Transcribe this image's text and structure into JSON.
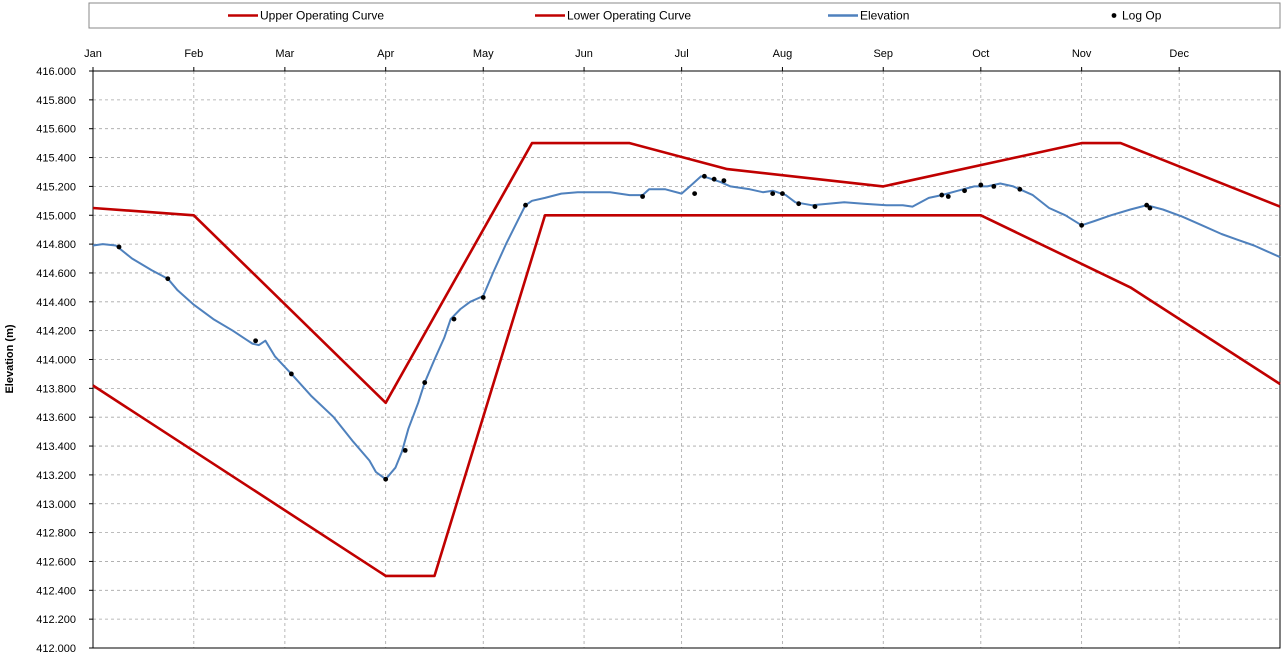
{
  "chart_data": {
    "type": "line",
    "ylabel": "Elevation (m)",
    "ylim": [
      412.0,
      416.0
    ],
    "y_ticks": [
      "412.000",
      "412.200",
      "412.400",
      "412.600",
      "412.800",
      "413.000",
      "413.200",
      "413.400",
      "413.600",
      "413.800",
      "414.000",
      "414.200",
      "414.400",
      "414.600",
      "414.800",
      "415.000",
      "415.200",
      "415.400",
      "415.600",
      "415.800",
      "416.000"
    ],
    "x_axis": {
      "unit": "day of year",
      "range": [
        1,
        366
      ],
      "position": "top"
    },
    "months": [
      {
        "label": "Jan",
        "day": 1
      },
      {
        "label": "Feb",
        "day": 32
      },
      {
        "label": "Mar",
        "day": 60
      },
      {
        "label": "Apr",
        "day": 91
      },
      {
        "label": "May",
        "day": 121
      },
      {
        "label": "Jun",
        "day": 152
      },
      {
        "label": "Jul",
        "day": 182
      },
      {
        "label": "Aug",
        "day": 213
      },
      {
        "label": "Sep",
        "day": 244
      },
      {
        "label": "Oct",
        "day": 274
      },
      {
        "label": "Nov",
        "day": 305
      },
      {
        "label": "Dec",
        "day": 335
      }
    ],
    "grid": true,
    "legend_position": "top",
    "series": [
      {
        "name": "Upper Operating Curve",
        "kind": "line",
        "color": "#c00000",
        "points": [
          [
            1,
            415.05
          ],
          [
            32,
            415.0
          ],
          [
            91,
            413.7
          ],
          [
            136,
            415.5
          ],
          [
            166,
            415.5
          ],
          [
            196,
            415.32
          ],
          [
            244,
            415.2
          ],
          [
            305,
            415.5
          ],
          [
            317,
            415.5
          ],
          [
            366,
            415.06
          ]
        ]
      },
      {
        "name": "Lower Operating Curve",
        "kind": "line",
        "color": "#c00000",
        "points": [
          [
            1,
            413.82
          ],
          [
            91,
            412.5
          ],
          [
            106,
            412.5
          ],
          [
            140,
            415.0
          ],
          [
            274,
            415.0
          ],
          [
            320,
            414.5
          ],
          [
            366,
            413.83
          ]
        ]
      },
      {
        "name": "Elevation",
        "kind": "line",
        "color": "#4f81bd",
        "points": [
          [
            1,
            414.79
          ],
          [
            4,
            414.8
          ],
          [
            8,
            414.79
          ],
          [
            13,
            414.7
          ],
          [
            19,
            414.62
          ],
          [
            24,
            414.56
          ],
          [
            27,
            414.48
          ],
          [
            32,
            414.38
          ],
          [
            38,
            414.28
          ],
          [
            44,
            414.2
          ],
          [
            48,
            414.14
          ],
          [
            50,
            414.11
          ],
          [
            52,
            414.1
          ],
          [
            54,
            414.13
          ],
          [
            57,
            414.02
          ],
          [
            62,
            413.9
          ],
          [
            68,
            413.75
          ],
          [
            75,
            413.6
          ],
          [
            81,
            413.43
          ],
          [
            86,
            413.3
          ],
          [
            88,
            413.22
          ],
          [
            91,
            413.17
          ],
          [
            94,
            413.25
          ],
          [
            96,
            413.36
          ],
          [
            98,
            413.52
          ],
          [
            101,
            413.7
          ],
          [
            103,
            413.84
          ],
          [
            106,
            414.0
          ],
          [
            109,
            414.15
          ],
          [
            111,
            414.28
          ],
          [
            114,
            414.35
          ],
          [
            117,
            414.4
          ],
          [
            121,
            414.44
          ],
          [
            124,
            414.6
          ],
          [
            128,
            414.8
          ],
          [
            132,
            414.98
          ],
          [
            134,
            415.07
          ],
          [
            136,
            415.1
          ],
          [
            140,
            415.12
          ],
          [
            145,
            415.15
          ],
          [
            150,
            415.16
          ],
          [
            155,
            415.16
          ],
          [
            160,
            415.16
          ],
          [
            166,
            415.14
          ],
          [
            170,
            415.14
          ],
          [
            172,
            415.18
          ],
          [
            177,
            415.18
          ],
          [
            182,
            415.15
          ],
          [
            185,
            415.21
          ],
          [
            188,
            415.27
          ],
          [
            190,
            415.26
          ],
          [
            194,
            415.23
          ],
          [
            197,
            415.2
          ],
          [
            203,
            415.18
          ],
          [
            207,
            415.16
          ],
          [
            210,
            415.17
          ],
          [
            214,
            415.14
          ],
          [
            217,
            415.09
          ],
          [
            222,
            415.07
          ],
          [
            227,
            415.08
          ],
          [
            232,
            415.09
          ],
          [
            238,
            415.08
          ],
          [
            245,
            415.07
          ],
          [
            250,
            415.07
          ],
          [
            253,
            415.06
          ],
          [
            258,
            415.12
          ],
          [
            262,
            415.14
          ],
          [
            267,
            415.17
          ],
          [
            272,
            415.2
          ],
          [
            276,
            415.2
          ],
          [
            280,
            415.22
          ],
          [
            284,
            415.2
          ],
          [
            290,
            415.14
          ],
          [
            295,
            415.05
          ],
          [
            300,
            415.0
          ],
          [
            305,
            414.93
          ],
          [
            309,
            414.96
          ],
          [
            314,
            415.0
          ],
          [
            320,
            415.04
          ],
          [
            325,
            415.07
          ],
          [
            330,
            415.04
          ],
          [
            336,
            414.99
          ],
          [
            342,
            414.93
          ],
          [
            348,
            414.87
          ],
          [
            353,
            414.83
          ],
          [
            358,
            414.79
          ],
          [
            362,
            414.75
          ],
          [
            366,
            414.71
          ]
        ]
      },
      {
        "name": "Log Op",
        "kind": "scatter",
        "color": "#000000",
        "points": [
          [
            9,
            414.78
          ],
          [
            24,
            414.56
          ],
          [
            51,
            414.13
          ],
          [
            62,
            413.9
          ],
          [
            91,
            413.17
          ],
          [
            97,
            413.37
          ],
          [
            103,
            413.84
          ],
          [
            112,
            414.28
          ],
          [
            121,
            414.43
          ],
          [
            134,
            415.07
          ],
          [
            170,
            415.13
          ],
          [
            186,
            415.15
          ],
          [
            189,
            415.27
          ],
          [
            192,
            415.25
          ],
          [
            195,
            415.24
          ],
          [
            210,
            415.15
          ],
          [
            213,
            415.15
          ],
          [
            218,
            415.08
          ],
          [
            223,
            415.06
          ],
          [
            262,
            415.14
          ],
          [
            264,
            415.13
          ],
          [
            269,
            415.17
          ],
          [
            274,
            415.21
          ],
          [
            278,
            415.2
          ],
          [
            286,
            415.18
          ],
          [
            305,
            414.93
          ],
          [
            325,
            415.07
          ],
          [
            326,
            415.05
          ]
        ]
      }
    ]
  }
}
